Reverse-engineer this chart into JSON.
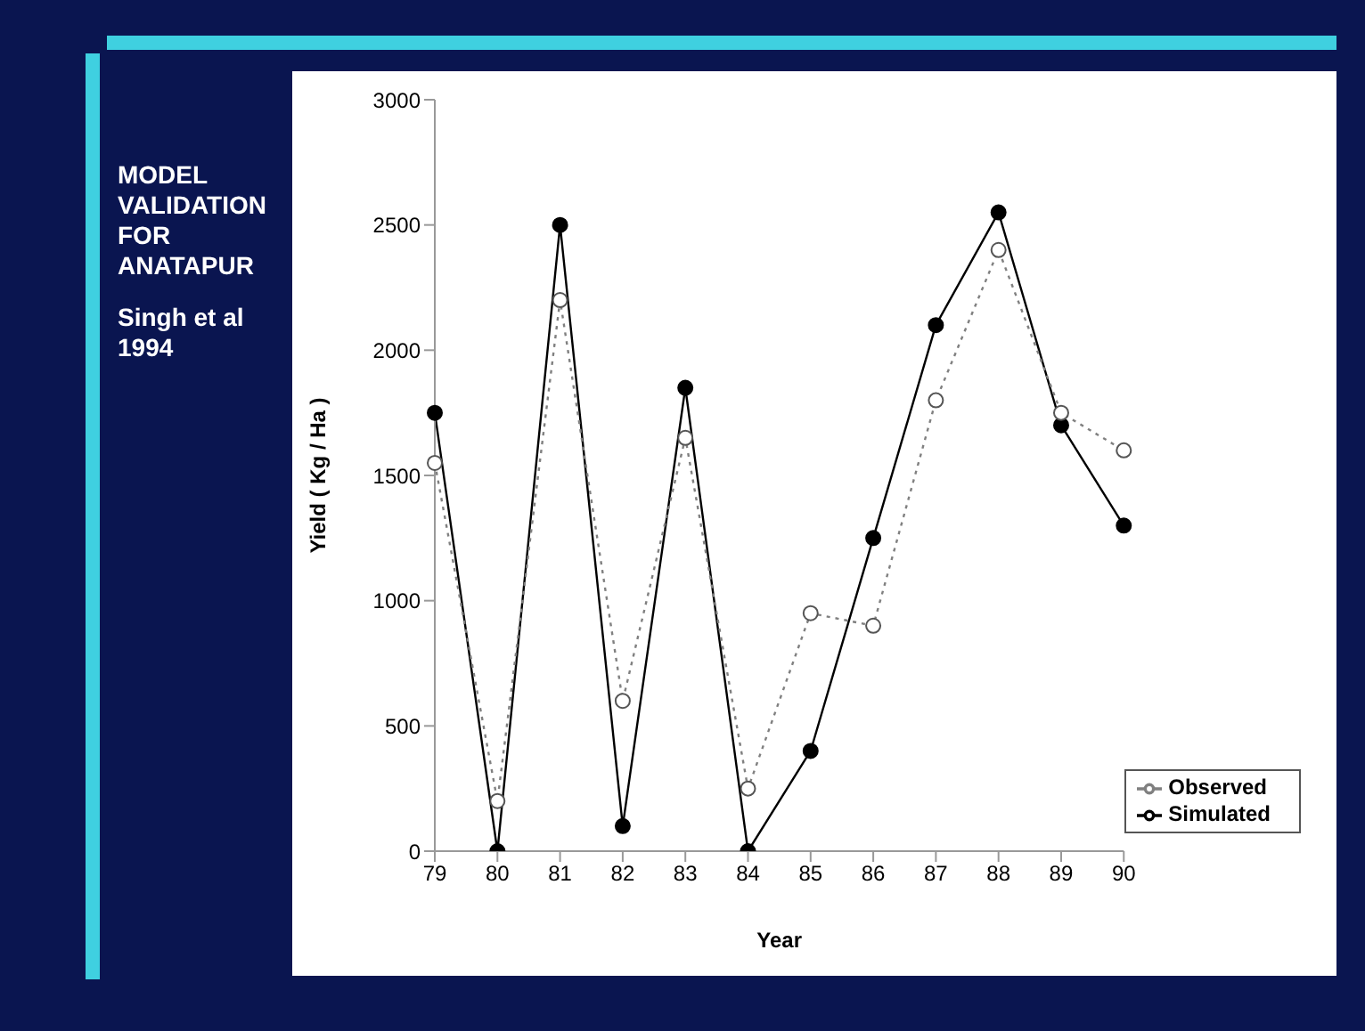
{
  "chart_data": {
    "type": "line",
    "xlabel": "Year",
    "ylabel": "Yield ( Kg / Ha )",
    "categories": [
      "79",
      "80",
      "81",
      "82",
      "83",
      "84",
      "85",
      "86",
      "87",
      "88",
      "89",
      "90"
    ],
    "series": [
      {
        "name": "Simulated",
        "color": "#000000",
        "line_style": "solid",
        "values": [
          1750,
          0,
          2500,
          100,
          1850,
          0,
          400,
          1250,
          2100,
          2550,
          1700,
          1300
        ]
      },
      {
        "name": "Observed",
        "color": "#808080",
        "line_style": "dotted",
        "values": [
          1550,
          200,
          2200,
          600,
          1650,
          250,
          950,
          900,
          1800,
          2400,
          1750,
          1600
        ]
      }
    ],
    "ylim": [
      0,
      3000
    ],
    "yticks": [
      0,
      500,
      1000,
      1500,
      2000,
      2500,
      3000
    ],
    "grid": false,
    "legend": "bottom right",
    "marker": "circle",
    "annotations": [
      "MODEL VALIDATION FOR ANATAPUR",
      "Singh et al 1994"
    ]
  }
}
